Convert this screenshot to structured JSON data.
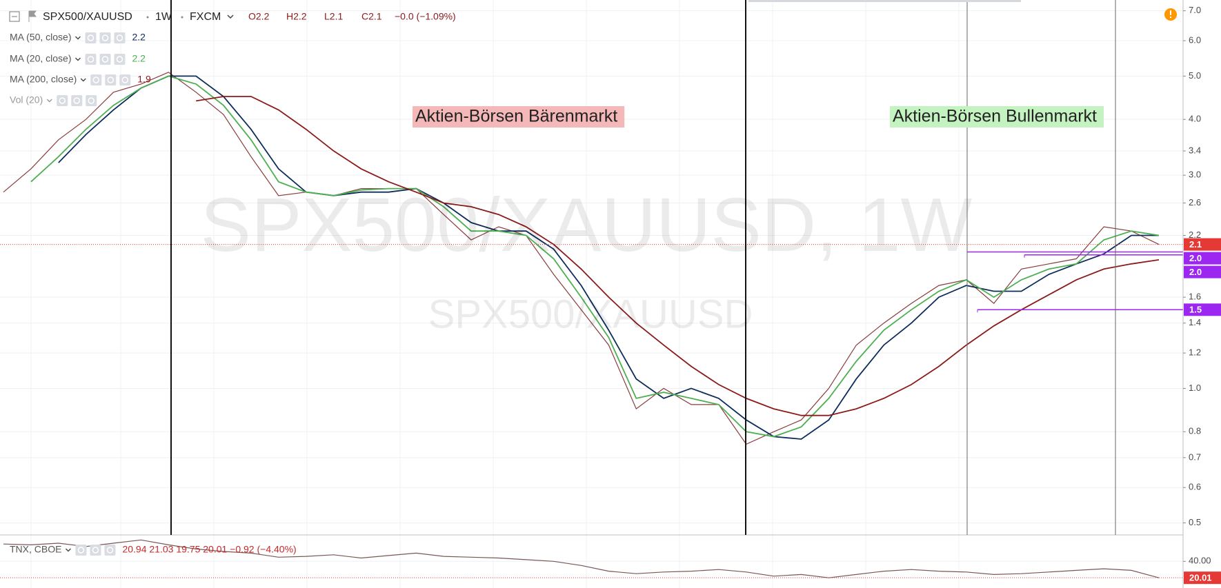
{
  "header": {
    "symbol": "SPX500/XAUUSD",
    "interval": "1W",
    "exchange": "FXCM",
    "open": "O2.2",
    "high": "H2.2",
    "low": "L2.1",
    "close": "C2.1",
    "change": "−0.0 (−1.09%)"
  },
  "chart_data": [
    {
      "type": "line",
      "log": true,
      "grid": true,
      "watermark": "SPX500/XAUUSD, 1W",
      "vol_legend": "Vol (20)",
      "ylim": [
        0.47,
        7.4
      ],
      "yticks": [
        {
          "value": 7,
          "label": "7.0"
        },
        {
          "value": 6,
          "label": "6.0"
        },
        {
          "value": 5,
          "label": "5.0"
        },
        {
          "value": 4,
          "label": "4.0"
        },
        3.4,
        {
          "value": 3,
          "label": "3.0"
        },
        2.6,
        2.2,
        1.6,
        1.4,
        1.2,
        {
          "value": 1,
          "label": "1.0"
        },
        0.8,
        0.7,
        0.6,
        0.5
      ],
      "series": [
        {
          "name": "SPX500/XAUUSD",
          "color": "#8a3b3b",
          "values": [
            2.75,
            3.1,
            3.6,
            4.0,
            4.6,
            4.8,
            5.1,
            4.6,
            4.1,
            3.3,
            2.7,
            2.75,
            2.7,
            2.8,
            2.8,
            2.8,
            2.45,
            2.15,
            2.3,
            2.2,
            1.8,
            1.5,
            1.25,
            0.9,
            1.0,
            0.92,
            0.92,
            0.75,
            0.8,
            0.85,
            1.0,
            1.25,
            1.4,
            1.55,
            1.7,
            1.75,
            1.55,
            1.85,
            1.9,
            1.95,
            2.3,
            2.25,
            2.1
          ]
        },
        {
          "name": "MA (50, close)",
          "legend_value": "2.2",
          "color": "#0d2c5c",
          "values": [
            null,
            null,
            3.2,
            3.7,
            4.2,
            4.7,
            5.0,
            5.0,
            4.5,
            3.8,
            3.1,
            2.75,
            2.7,
            2.75,
            2.75,
            2.8,
            2.6,
            2.35,
            2.25,
            2.25,
            2.05,
            1.7,
            1.35,
            1.05,
            0.95,
            1.0,
            0.95,
            0.85,
            0.78,
            0.77,
            0.85,
            1.05,
            1.25,
            1.4,
            1.6,
            1.7,
            1.65,
            1.65,
            1.8,
            1.9,
            2.0,
            2.2,
            2.2
          ]
        },
        {
          "name": "MA (20, close)",
          "legend_value": "2.2",
          "color": "#4caf50",
          "values": [
            null,
            2.9,
            3.3,
            3.8,
            4.3,
            4.7,
            5.0,
            4.8,
            4.3,
            3.6,
            2.9,
            2.75,
            2.7,
            2.78,
            2.8,
            2.8,
            2.55,
            2.25,
            2.25,
            2.2,
            1.95,
            1.6,
            1.3,
            0.95,
            0.98,
            0.95,
            0.92,
            0.8,
            0.78,
            0.82,
            0.95,
            1.15,
            1.35,
            1.5,
            1.65,
            1.75,
            1.6,
            1.75,
            1.85,
            1.9,
            2.15,
            2.25,
            2.2
          ]
        },
        {
          "name": "MA (200, close)",
          "legend_value": "1.9",
          "color": "#8b1a1a",
          "values": [
            null,
            null,
            null,
            null,
            null,
            null,
            null,
            4.4,
            4.5,
            4.5,
            4.2,
            3.8,
            3.4,
            3.1,
            2.9,
            2.75,
            2.6,
            2.55,
            2.45,
            2.3,
            2.1,
            1.85,
            1.6,
            1.4,
            1.25,
            1.12,
            1.02,
            0.95,
            0.9,
            0.87,
            0.87,
            0.9,
            0.95,
            1.02,
            1.12,
            1.25,
            1.38,
            1.5,
            1.62,
            1.75,
            1.85,
            1.9,
            1.94
          ]
        }
      ],
      "level_color": "#9c27f0",
      "levels": [
        {
          "value": 2.02,
          "label": "2.0"
        },
        {
          "value": 1.99,
          "label": "2.0"
        },
        1.5
      ],
      "annotations": [
        {
          "text": "Aktien-Börsen Bärenmarkt",
          "color": "#f4b8b8"
        },
        {
          "text": "Aktien-Börsen Bullenmarkt",
          "color": "#c4f2c0"
        }
      ]
    },
    {
      "type": "line",
      "log": false,
      "grid": true,
      "title": "TNX, CBOE",
      "quote": "20.94 21.03 19.75 20.01 −0.92 (−4.40%)",
      "ylim": [
        7.6,
        70.4
      ],
      "yticks": [
        {
          "value": 40,
          "label": "40.00"
        }
      ],
      "series": [
        {
          "name": "TNX",
          "color": "#7a5555",
          "values": [
            61,
            60,
            62,
            58,
            62,
            66,
            60,
            55,
            52,
            50,
            45,
            46,
            48,
            44,
            47,
            50,
            46,
            45,
            44,
            42,
            40,
            35,
            28,
            25,
            27,
            28,
            30,
            27,
            22,
            24,
            20,
            24,
            28,
            30,
            28,
            27,
            24,
            25,
            27,
            29,
            31,
            29,
            20.01
          ]
        }
      ]
    }
  ]
}
